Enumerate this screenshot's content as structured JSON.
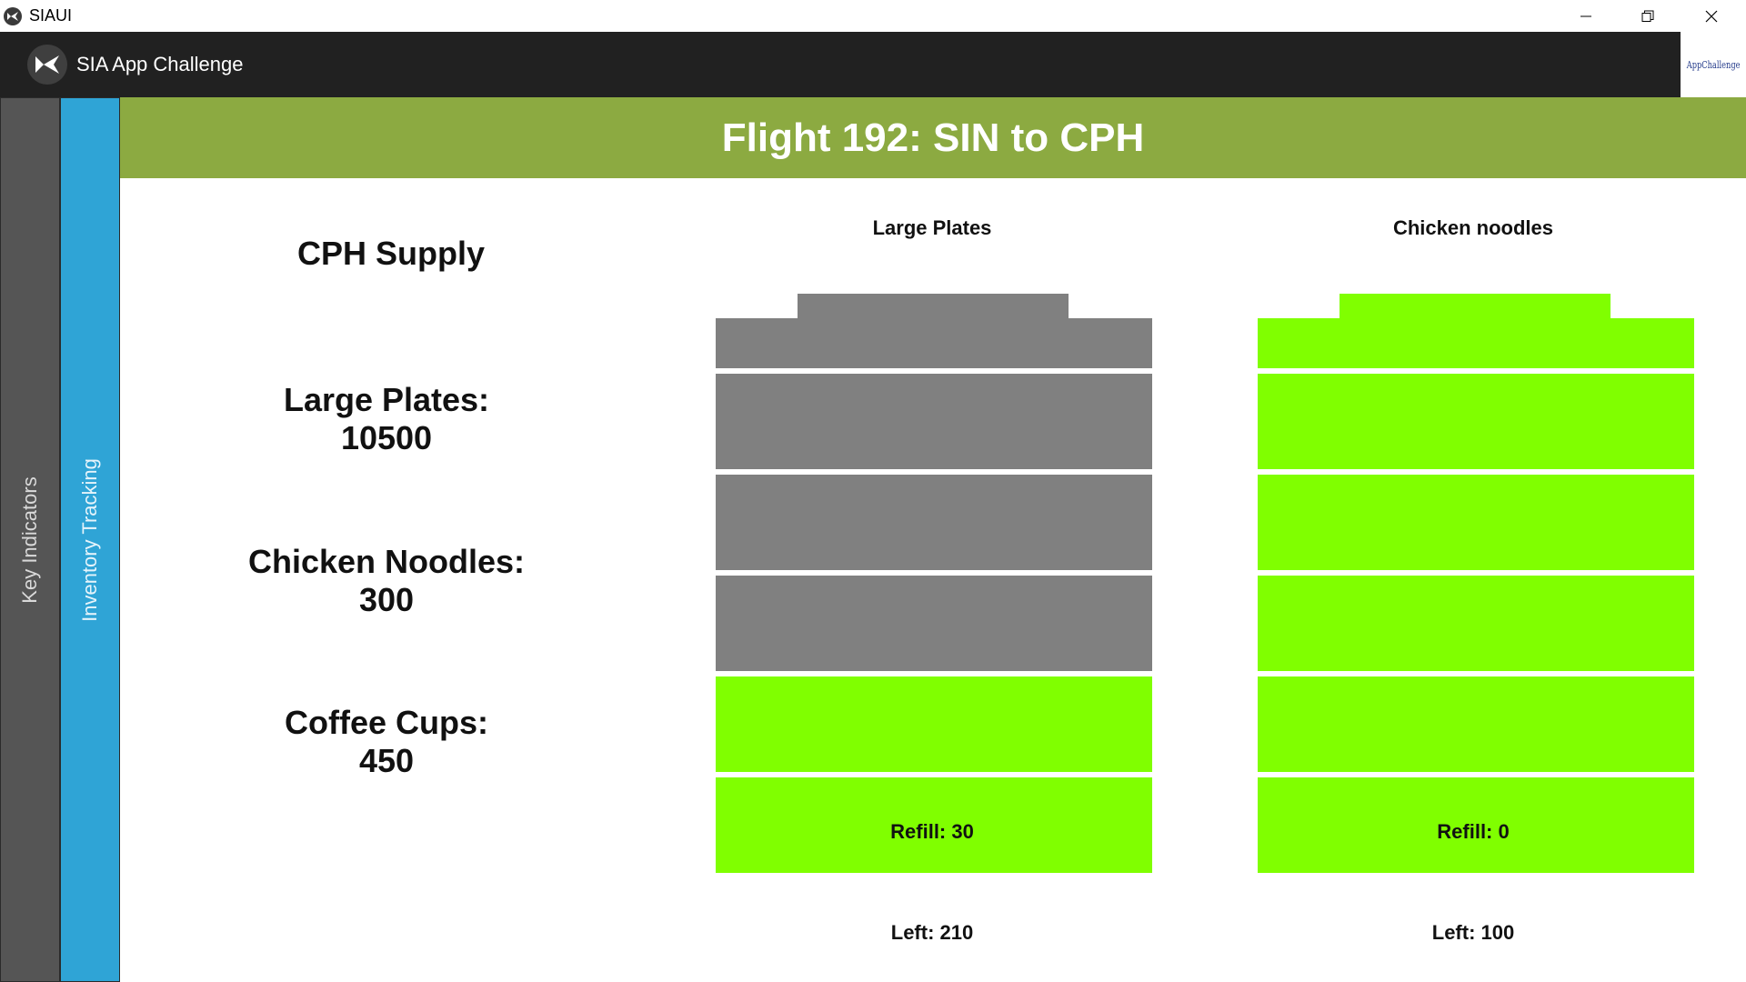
{
  "window": {
    "title": "SIAUI",
    "icon": "kivy-logo-icon"
  },
  "appbar": {
    "title": "SIA App Challenge",
    "logo": "kivy-logo-icon",
    "badge_text": "AppChallenge"
  },
  "side_tabs": [
    {
      "label": "Key Indicators",
      "active": false
    },
    {
      "label": "Inventory Tracking",
      "active": true
    }
  ],
  "banner": {
    "title": "Flight 192: SIN to CPH"
  },
  "supply": {
    "title": "CPH Supply",
    "items": [
      {
        "name": "Large Plates:",
        "value": "10500"
      },
      {
        "name": "Chicken Noodles:",
        "value": "300"
      },
      {
        "name": "Coffee Cups:",
        "value": "450"
      }
    ]
  },
  "inventory": [
    {
      "name": "Large Plates",
      "refill": "Refill: 30",
      "left": "Left: 210",
      "segments_total": 5,
      "segments_filled": 2,
      "cap_filled": false
    },
    {
      "name": "Chicken noodles",
      "refill": "Refill: 0",
      "left": "Left: 100",
      "segments_total": 5,
      "segments_filled": 5,
      "cap_filled": true
    }
  ],
  "colors": {
    "filled": "#80ff00",
    "empty": "#808080",
    "banner": "#8caa41",
    "appbar": "#212121",
    "tab_key": "#555555",
    "tab_inventory": "#2fa4d6"
  }
}
